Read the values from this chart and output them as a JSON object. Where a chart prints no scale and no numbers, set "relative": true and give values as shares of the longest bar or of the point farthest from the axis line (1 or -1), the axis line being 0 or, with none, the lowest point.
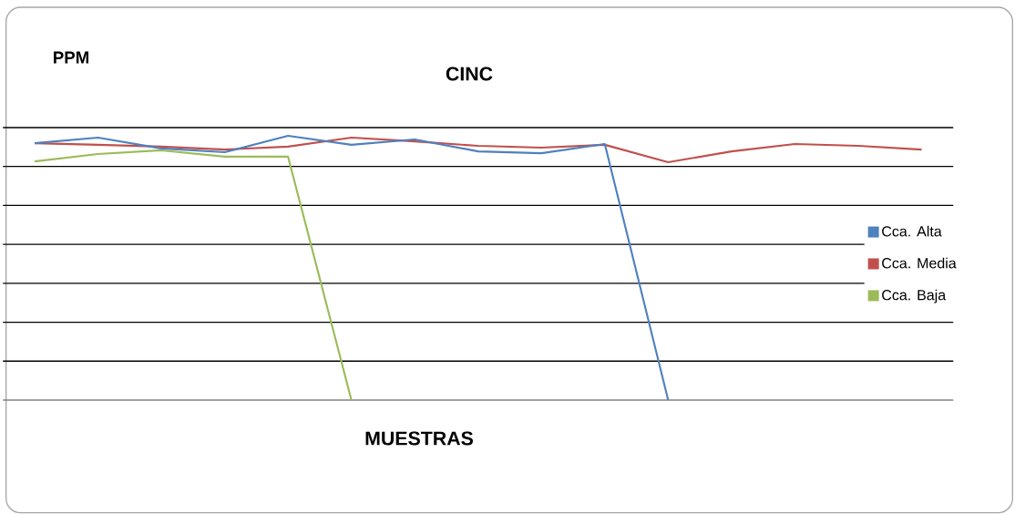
{
  "chart_data": {
    "type": "line",
    "title": "CINC",
    "ylabel": "PPM",
    "xlabel": "MUESTRAS",
    "relative": true,
    "grid": "y",
    "legend": "right",
    "marker": "none",
    "line_style": "solid",
    "categories": [
      null,
      null,
      null,
      null,
      null,
      null,
      null,
      null,
      null,
      null,
      null,
      null,
      null,
      null,
      null
    ],
    "series": [
      {
        "name": "Cca. Alta",
        "color": "#4f81bd",
        "values": [
          0.972,
          0.993,
          0.952,
          0.938,
          1,
          0.966,
          0.986,
          0.941,
          0.934,
          0.969,
          0,
          null,
          null,
          null,
          null
        ]
      },
      {
        "name": "Cca. Media",
        "color": "#c0504d",
        "values": [
          0.972,
          0.966,
          0.959,
          0.948,
          0.959,
          0.993,
          0.979,
          0.962,
          0.955,
          0.966,
          0.9,
          0.941,
          0.969,
          0.962,
          0.948
        ]
      },
      {
        "name": "Cca. Baja",
        "color": "#9bbb59",
        "values": [
          0.903,
          0.931,
          0.945,
          0.921,
          0.921,
          0,
          null,
          null,
          null,
          null,
          null,
          null,
          null,
          null,
          null
        ]
      }
    ]
  }
}
